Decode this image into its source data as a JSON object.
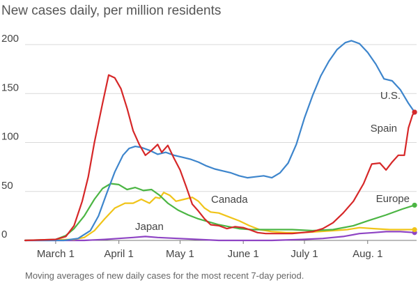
{
  "chart_data": {
    "type": "line",
    "title": "New cases daily, per million residents",
    "caption": "Moving averages of new daily cases for the most recent 7-day period.",
    "x_domain": [
      "2020-02-15",
      "2020-08-25"
    ],
    "ylim": [
      0,
      210
    ],
    "y_ticks": [
      0,
      50,
      100,
      150,
      200
    ],
    "x_ticks": [
      {
        "date": "2020-03-01",
        "label": "March 1"
      },
      {
        "date": "2020-04-01",
        "label": "April 1"
      },
      {
        "date": "2020-05-01",
        "label": "May 1"
      },
      {
        "date": "2020-06-01",
        "label": "June 1"
      },
      {
        "date": "2020-07-01",
        "label": "July 1"
      },
      {
        "date": "2020-08-01",
        "label": "Aug. 1"
      }
    ],
    "grid": "horizontal",
    "series": [
      {
        "name": "U.S.",
        "color": "#3d85cc",
        "points": [
          [
            "2020-02-15",
            0
          ],
          [
            "2020-03-05",
            0
          ],
          [
            "2020-03-12",
            2
          ],
          [
            "2020-03-18",
            10
          ],
          [
            "2020-03-22",
            25
          ],
          [
            "2020-03-26",
            48
          ],
          [
            "2020-03-30",
            70
          ],
          [
            "2020-04-03",
            87
          ],
          [
            "2020-04-06",
            94
          ],
          [
            "2020-04-09",
            96
          ],
          [
            "2020-04-12",
            95
          ],
          [
            "2020-04-16",
            92
          ],
          [
            "2020-04-20",
            88
          ],
          [
            "2020-04-24",
            90
          ],
          [
            "2020-04-28",
            87
          ],
          [
            "2020-05-02",
            85
          ],
          [
            "2020-05-06",
            83
          ],
          [
            "2020-05-10",
            80
          ],
          [
            "2020-05-14",
            76
          ],
          [
            "2020-05-18",
            73
          ],
          [
            "2020-05-22",
            71
          ],
          [
            "2020-05-26",
            69
          ],
          [
            "2020-05-30",
            66
          ],
          [
            "2020-06-03",
            64
          ],
          [
            "2020-06-07",
            65
          ],
          [
            "2020-06-11",
            66
          ],
          [
            "2020-06-15",
            64
          ],
          [
            "2020-06-19",
            69
          ],
          [
            "2020-06-23",
            79
          ],
          [
            "2020-06-27",
            98
          ],
          [
            "2020-07-01",
            125
          ],
          [
            "2020-07-05",
            148
          ],
          [
            "2020-07-09",
            168
          ],
          [
            "2020-07-13",
            183
          ],
          [
            "2020-07-17",
            195
          ],
          [
            "2020-07-21",
            202
          ],
          [
            "2020-07-24",
            204
          ],
          [
            "2020-07-28",
            201
          ],
          [
            "2020-08-01",
            192
          ],
          [
            "2020-08-05",
            180
          ],
          [
            "2020-08-09",
            165
          ],
          [
            "2020-08-13",
            163
          ],
          [
            "2020-08-17",
            154
          ],
          [
            "2020-08-21",
            140
          ],
          [
            "2020-08-24",
            131
          ]
        ]
      },
      {
        "name": "Spain",
        "color": "#d62728",
        "points": [
          [
            "2020-02-15",
            0
          ],
          [
            "2020-03-01",
            1
          ],
          [
            "2020-03-06",
            4
          ],
          [
            "2020-03-10",
            15
          ],
          [
            "2020-03-14",
            40
          ],
          [
            "2020-03-17",
            65
          ],
          [
            "2020-03-20",
            100
          ],
          [
            "2020-03-24",
            140
          ],
          [
            "2020-03-27",
            169
          ],
          [
            "2020-03-30",
            166
          ],
          [
            "2020-04-02",
            155
          ],
          [
            "2020-04-05",
            135
          ],
          [
            "2020-04-08",
            112
          ],
          [
            "2020-04-11",
            98
          ],
          [
            "2020-04-14",
            87
          ],
          [
            "2020-04-17",
            92
          ],
          [
            "2020-04-20",
            98
          ],
          [
            "2020-04-22",
            90
          ],
          [
            "2020-04-25",
            97
          ],
          [
            "2020-04-28",
            84
          ],
          [
            "2020-05-01",
            72
          ],
          [
            "2020-05-04",
            55
          ],
          [
            "2020-05-07",
            37
          ],
          [
            "2020-05-10",
            30
          ],
          [
            "2020-05-13",
            22
          ],
          [
            "2020-05-16",
            16
          ],
          [
            "2020-05-20",
            15
          ],
          [
            "2020-05-24",
            12
          ],
          [
            "2020-05-28",
            14
          ],
          [
            "2020-06-01",
            13
          ],
          [
            "2020-06-04",
            11
          ],
          [
            "2020-06-08",
            8
          ],
          [
            "2020-06-12",
            7
          ],
          [
            "2020-06-16",
            7
          ],
          [
            "2020-06-20",
            7
          ],
          [
            "2020-06-25",
            7
          ],
          [
            "2020-06-30",
            8
          ],
          [
            "2020-07-05",
            9
          ],
          [
            "2020-07-10",
            12
          ],
          [
            "2020-07-15",
            18
          ],
          [
            "2020-07-20",
            28
          ],
          [
            "2020-07-25",
            40
          ],
          [
            "2020-07-30",
            58
          ],
          [
            "2020-08-03",
            78
          ],
          [
            "2020-08-07",
            79
          ],
          [
            "2020-08-10",
            72
          ],
          [
            "2020-08-13",
            80
          ],
          [
            "2020-08-16",
            87
          ],
          [
            "2020-08-19",
            87
          ],
          [
            "2020-08-21",
            115
          ],
          [
            "2020-08-23",
            128
          ],
          [
            "2020-08-24",
            131
          ]
        ]
      },
      {
        "name": "Europe",
        "color": "#4bb543",
        "points": [
          [
            "2020-02-15",
            0
          ],
          [
            "2020-03-01",
            1
          ],
          [
            "2020-03-06",
            5
          ],
          [
            "2020-03-10",
            12
          ],
          [
            "2020-03-15",
            25
          ],
          [
            "2020-03-20",
            42
          ],
          [
            "2020-03-24",
            53
          ],
          [
            "2020-03-28",
            58
          ],
          [
            "2020-04-01",
            57
          ],
          [
            "2020-04-05",
            52
          ],
          [
            "2020-04-09",
            54
          ],
          [
            "2020-04-13",
            51
          ],
          [
            "2020-04-17",
            52
          ],
          [
            "2020-04-21",
            46
          ],
          [
            "2020-04-25",
            38
          ],
          [
            "2020-04-30",
            31
          ],
          [
            "2020-05-05",
            26
          ],
          [
            "2020-05-10",
            22
          ],
          [
            "2020-05-15",
            19
          ],
          [
            "2020-05-20",
            16
          ],
          [
            "2020-05-25",
            14
          ],
          [
            "2020-05-30",
            12
          ],
          [
            "2020-06-05",
            11
          ],
          [
            "2020-06-15",
            11
          ],
          [
            "2020-06-25",
            11
          ],
          [
            "2020-07-05",
            10
          ],
          [
            "2020-07-15",
            11
          ],
          [
            "2020-07-25",
            15
          ],
          [
            "2020-08-01",
            20
          ],
          [
            "2020-08-10",
            26
          ],
          [
            "2020-08-18",
            32
          ],
          [
            "2020-08-24",
            36
          ]
        ]
      },
      {
        "name": "Canada",
        "color": "#f0c419",
        "points": [
          [
            "2020-02-15",
            0
          ],
          [
            "2020-03-10",
            1
          ],
          [
            "2020-03-15",
            3
          ],
          [
            "2020-03-20",
            10
          ],
          [
            "2020-03-25",
            22
          ],
          [
            "2020-03-30",
            33
          ],
          [
            "2020-04-04",
            38
          ],
          [
            "2020-04-08",
            38
          ],
          [
            "2020-04-12",
            42
          ],
          [
            "2020-04-16",
            38
          ],
          [
            "2020-04-19",
            44
          ],
          [
            "2020-04-21",
            43
          ],
          [
            "2020-04-23",
            49
          ],
          [
            "2020-04-26",
            46
          ],
          [
            "2020-04-29",
            40
          ],
          [
            "2020-05-03",
            42
          ],
          [
            "2020-05-07",
            44
          ],
          [
            "2020-05-10",
            40
          ],
          [
            "2020-05-13",
            33
          ],
          [
            "2020-05-16",
            29
          ],
          [
            "2020-05-20",
            28
          ],
          [
            "2020-05-25",
            24
          ],
          [
            "2020-05-30",
            20
          ],
          [
            "2020-06-04",
            15
          ],
          [
            "2020-06-09",
            11
          ],
          [
            "2020-06-15",
            9
          ],
          [
            "2020-06-22",
            8
          ],
          [
            "2020-06-30",
            8
          ],
          [
            "2020-07-08",
            9
          ],
          [
            "2020-07-15",
            10
          ],
          [
            "2020-07-22",
            11
          ],
          [
            "2020-07-28",
            13
          ],
          [
            "2020-08-04",
            12
          ],
          [
            "2020-08-12",
            11
          ],
          [
            "2020-08-20",
            11
          ],
          [
            "2020-08-24",
            11
          ]
        ]
      },
      {
        "name": "Japan",
        "color": "#8e44c4",
        "points": [
          [
            "2020-02-15",
            0
          ],
          [
            "2020-03-15",
            0
          ],
          [
            "2020-03-25",
            1
          ],
          [
            "2020-04-01",
            2
          ],
          [
            "2020-04-08",
            3
          ],
          [
            "2020-04-14",
            4
          ],
          [
            "2020-04-20",
            3
          ],
          [
            "2020-04-30",
            2
          ],
          [
            "2020-05-10",
            1
          ],
          [
            "2020-05-20",
            0
          ],
          [
            "2020-06-01",
            0
          ],
          [
            "2020-06-15",
            0
          ],
          [
            "2020-06-30",
            1
          ],
          [
            "2020-07-10",
            2
          ],
          [
            "2020-07-20",
            4
          ],
          [
            "2020-07-28",
            7
          ],
          [
            "2020-08-04",
            8
          ],
          [
            "2020-08-10",
            9
          ],
          [
            "2020-08-17",
            9
          ],
          [
            "2020-08-24",
            8
          ]
        ]
      }
    ]
  }
}
